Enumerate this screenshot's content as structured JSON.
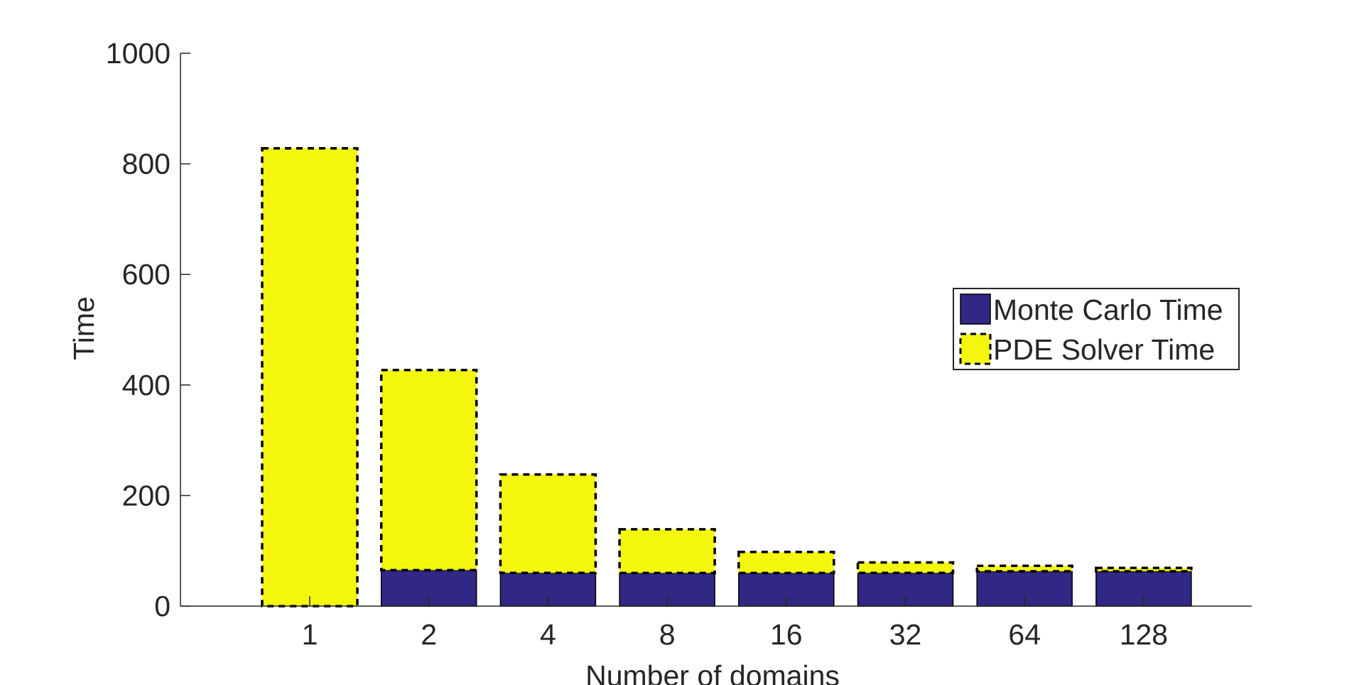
{
  "chart_data": {
    "type": "bar",
    "stacked": true,
    "title": "",
    "xlabel": "Number of domains",
    "ylabel": "Time",
    "categories": [
      "1",
      "2",
      "4",
      "8",
      "16",
      "32",
      "64",
      "128"
    ],
    "ylim": [
      0,
      1000
    ],
    "yticks": [
      0,
      200,
      400,
      600,
      800,
      1000
    ],
    "grid": false,
    "legend_position": "right",
    "series": [
      {
        "name": "Monte Carlo Time",
        "values": [
          0,
          65,
          60,
          60,
          60,
          60,
          63,
          63
        ],
        "color": "#312784",
        "border": "solid"
      },
      {
        "name": "PDE Solver Time",
        "values": [
          828,
          362,
          178,
          79,
          38,
          19,
          10,
          6
        ],
        "color": "#f4f70d",
        "border": "dashed"
      }
    ]
  }
}
